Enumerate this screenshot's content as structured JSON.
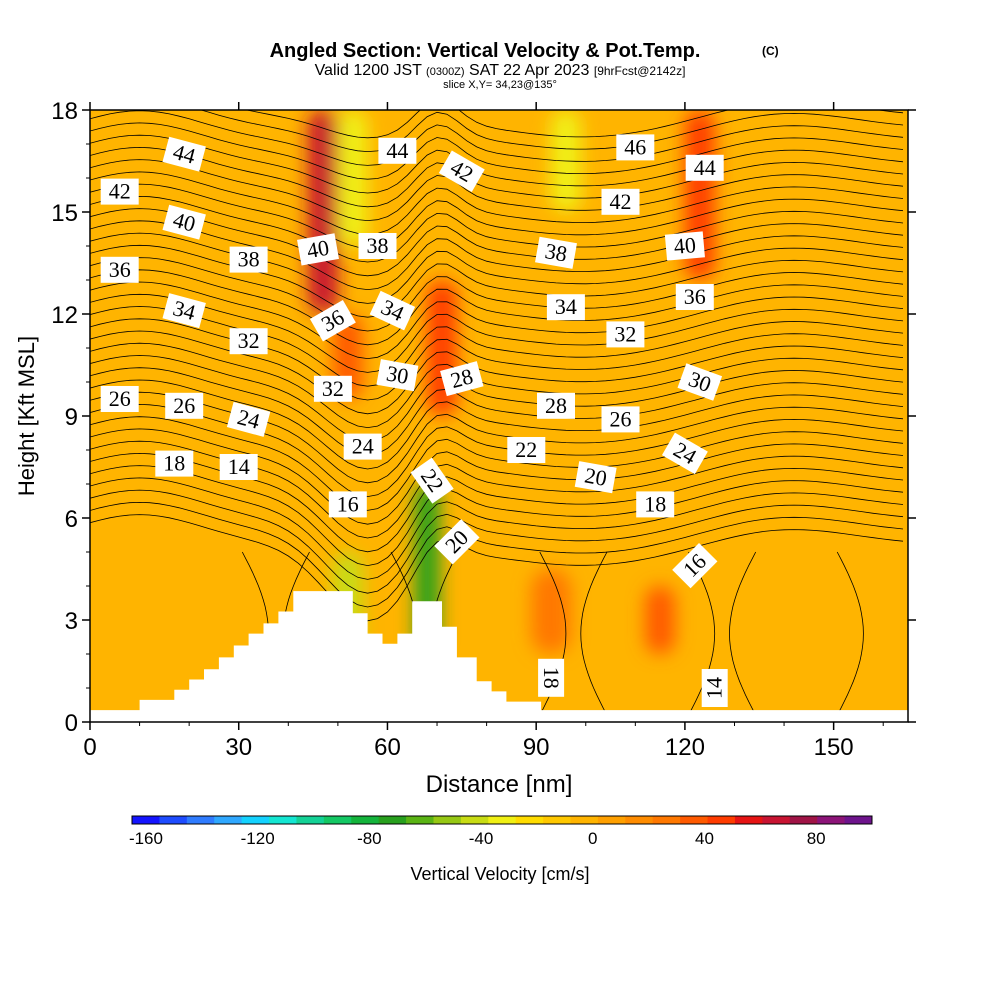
{
  "chart_data": {
    "type": "heatmap",
    "title": "Angled Section: Vertical Velocity & Pot.Temp.",
    "title_mark": "(C)",
    "subtitle": {
      "prefix": "Valid 1200 JST",
      "utc": "(0300Z)",
      "date": "SAT 22 Apr 2023",
      "forecast": "[9hrFcst@2142z]"
    },
    "slice_label": "slice X,Y= 34,23@135°",
    "xlabel": "Distance [nm]",
    "ylabel": "Height [Kft MSL]",
    "xlim": [
      0,
      165
    ],
    "ylim": [
      0,
      18
    ],
    "x_ticks": [
      "0",
      "30",
      "60",
      "90",
      "120",
      "150"
    ],
    "y_ticks": [
      "0",
      "3",
      "6",
      "9",
      "12",
      "15",
      "18"
    ],
    "x_tick_values": [
      0,
      30,
      60,
      90,
      120,
      150
    ],
    "y_tick_values": [
      0,
      3,
      6,
      9,
      12,
      15,
      18
    ],
    "colorbar": {
      "label": "Vertical Velocity [cm/s]",
      "ticks": [
        "-160",
        "-120",
        "-80",
        "-40",
        "0",
        "40",
        "80"
      ],
      "tick_values": [
        -160,
        -120,
        -80,
        -40,
        0,
        40,
        80
      ],
      "range": [
        -165,
        100
      ],
      "colors": [
        "#1414ff",
        "#1e4cff",
        "#2f7cff",
        "#2fa8ff",
        "#14d2ff",
        "#14e6d2",
        "#14d296",
        "#14c864",
        "#14b43c",
        "#28a01e",
        "#5ab414",
        "#96c814",
        "#c8dc14",
        "#f0f014",
        "#ffdc00",
        "#ffc800",
        "#ffb400",
        "#ffa000",
        "#ff8c00",
        "#ff7800",
        "#ff5a00",
        "#ff3c00",
        "#e61414",
        "#c81432",
        "#a01446",
        "#8c1478",
        "#6e148c"
      ]
    },
    "terrain_profile": [
      [
        0,
        0.35
      ],
      [
        10,
        0.35
      ],
      [
        10,
        0.65
      ],
      [
        17,
        0.65
      ],
      [
        17,
        0.95
      ],
      [
        20,
        0.95
      ],
      [
        20,
        1.25
      ],
      [
        23,
        1.25
      ],
      [
        23,
        1.55
      ],
      [
        26,
        1.55
      ],
      [
        26,
        1.9
      ],
      [
        29,
        1.9
      ],
      [
        29,
        2.25
      ],
      [
        32,
        2.25
      ],
      [
        32,
        2.6
      ],
      [
        35,
        2.6
      ],
      [
        35,
        2.9
      ],
      [
        38,
        2.9
      ],
      [
        38,
        3.25
      ],
      [
        41,
        3.25
      ],
      [
        41,
        3.85
      ],
      [
        53,
        3.85
      ],
      [
        53,
        3.2
      ],
      [
        56,
        3.2
      ],
      [
        56,
        2.6
      ],
      [
        59,
        2.6
      ],
      [
        59,
        2.3
      ],
      [
        62,
        2.3
      ],
      [
        62,
        2.6
      ],
      [
        65,
        2.6
      ],
      [
        65,
        3.55
      ],
      [
        71,
        3.55
      ],
      [
        71,
        2.8
      ],
      [
        74,
        2.8
      ],
      [
        74,
        1.9
      ],
      [
        78,
        1.9
      ],
      [
        78,
        1.2
      ],
      [
        81,
        1.2
      ],
      [
        81,
        0.9
      ],
      [
        84,
        0.9
      ],
      [
        84,
        0.6
      ],
      [
        91,
        0.6
      ],
      [
        91,
        0.35
      ],
      [
        165,
        0.35
      ]
    ],
    "velocity_features": [
      {
        "x": 47,
        "ytop": 18,
        "ybot": 12,
        "w": 3,
        "v": 65
      },
      {
        "x": 52,
        "ytop": 12,
        "ybot": 9.5,
        "w": 3,
        "v": 40
      },
      {
        "x": 71,
        "ytop": 13,
        "ybot": 9,
        "w": 3,
        "v": 50
      },
      {
        "x": 123,
        "ytop": 18,
        "ybot": 13,
        "w": 3,
        "v": 45
      },
      {
        "x": 53,
        "ytop": 18,
        "ybot": 14,
        "w": 3,
        "v": -30
      },
      {
        "x": 68,
        "ytop": 7,
        "ybot": 2,
        "w": 2.5,
        "v": -75
      },
      {
        "x": 52,
        "ytop": 5,
        "ybot": 2,
        "w": 3,
        "v": -40
      },
      {
        "x": 93,
        "ytop": 4.5,
        "ybot": 2,
        "w": 4,
        "v": 30
      },
      {
        "x": 115,
        "ytop": 4,
        "ybot": 2,
        "w": 3,
        "v": 35
      },
      {
        "x": 96,
        "ytop": 18,
        "ybot": 15,
        "w": 3,
        "v": -35
      }
    ],
    "contour_labels": [
      {
        "text": "44",
        "x": 19,
        "y": 16.7,
        "rot": 15
      },
      {
        "text": "44",
        "x": 62,
        "y": 16.8,
        "rot": 0
      },
      {
        "text": "42",
        "x": 75,
        "y": 16.2,
        "rot": 30
      },
      {
        "text": "46",
        "x": 110,
        "y": 16.9,
        "rot": 0
      },
      {
        "text": "44",
        "x": 124,
        "y": 16.3,
        "rot": 0
      },
      {
        "text": "42",
        "x": 6,
        "y": 15.6,
        "rot": 0
      },
      {
        "text": "40",
        "x": 19,
        "y": 14.7,
        "rot": 15
      },
      {
        "text": "42",
        "x": 107,
        "y": 15.3,
        "rot": 0
      },
      {
        "text": "40",
        "x": 46,
        "y": 13.9,
        "rot": -10
      },
      {
        "text": "38",
        "x": 58,
        "y": 14.0,
        "rot": 0
      },
      {
        "text": "38",
        "x": 32,
        "y": 13.6,
        "rot": 0
      },
      {
        "text": "38",
        "x": 94,
        "y": 13.8,
        "rot": 10
      },
      {
        "text": "40",
        "x": 120,
        "y": 14.0,
        "rot": -5
      },
      {
        "text": "36",
        "x": 6,
        "y": 13.3,
        "rot": 0
      },
      {
        "text": "36",
        "x": 122,
        "y": 12.5,
        "rot": 0
      },
      {
        "text": "34",
        "x": 19,
        "y": 12.1,
        "rot": 15
      },
      {
        "text": "34",
        "x": 61,
        "y": 12.1,
        "rot": 25
      },
      {
        "text": "34",
        "x": 96,
        "y": 12.2,
        "rot": 0
      },
      {
        "text": "36",
        "x": 49,
        "y": 11.8,
        "rot": -30
      },
      {
        "text": "32",
        "x": 32,
        "y": 11.2,
        "rot": 0
      },
      {
        "text": "32",
        "x": 108,
        "y": 11.4,
        "rot": 0
      },
      {
        "text": "30",
        "x": 62,
        "y": 10.2,
        "rot": 10
      },
      {
        "text": "28",
        "x": 75,
        "y": 10.1,
        "rot": -15
      },
      {
        "text": "30",
        "x": 123,
        "y": 10.0,
        "rot": 20
      },
      {
        "text": "32",
        "x": 49,
        "y": 9.8,
        "rot": 0
      },
      {
        "text": "26",
        "x": 6,
        "y": 9.5,
        "rot": 0
      },
      {
        "text": "26",
        "x": 19,
        "y": 9.3,
        "rot": 0
      },
      {
        "text": "28",
        "x": 94,
        "y": 9.3,
        "rot": 0
      },
      {
        "text": "24",
        "x": 32,
        "y": 8.9,
        "rot": 15
      },
      {
        "text": "26",
        "x": 107,
        "y": 8.9,
        "rot": 0
      },
      {
        "text": "24",
        "x": 55,
        "y": 8.1,
        "rot": 0
      },
      {
        "text": "22",
        "x": 88,
        "y": 8.0,
        "rot": 0
      },
      {
        "text": "24",
        "x": 120,
        "y": 7.9,
        "rot": 30
      },
      {
        "text": "18",
        "x": 17,
        "y": 7.6,
        "rot": 0
      },
      {
        "text": "14",
        "x": 30,
        "y": 7.5,
        "rot": 0
      },
      {
        "text": "22",
        "x": 69,
        "y": 7.1,
        "rot": 55
      },
      {
        "text": "20",
        "x": 102,
        "y": 7.2,
        "rot": 10
      },
      {
        "text": "16",
        "x": 52,
        "y": 6.4,
        "rot": 0
      },
      {
        "text": "18",
        "x": 114,
        "y": 6.4,
        "rot": 0
      },
      {
        "text": "20",
        "x": 74,
        "y": 5.3,
        "rot": -45
      },
      {
        "text": "16",
        "x": 122,
        "y": 4.6,
        "rot": -45
      },
      {
        "text": "18",
        "x": 93,
        "y": 1.3,
        "rot": 90
      },
      {
        "text": "14",
        "x": 126,
        "y": 1.0,
        "rot": -90
      }
    ]
  }
}
